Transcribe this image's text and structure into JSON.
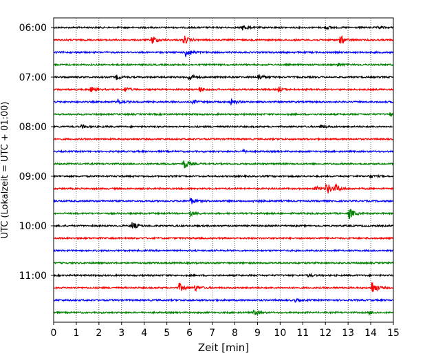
{
  "chart_data": {
    "type": "line",
    "title": "",
    "xlabel": "Zeit  [min]",
    "ylabel": "UTC (Lokalzeit = UTC + 01:00)",
    "xlim": [
      0,
      15
    ],
    "x_ticks": [
      0,
      1,
      2,
      3,
      4,
      5,
      6,
      7,
      8,
      9,
      10,
      11,
      12,
      13,
      14,
      15
    ],
    "x_grid": true,
    "y_ticks": [
      "06:00",
      "07:00",
      "08:00",
      "09:00",
      "10:00",
      "11:00"
    ],
    "trace_colors": [
      "#000000",
      "#ff0000",
      "#0000ff",
      "#008000"
    ],
    "trace_interval_min": 15,
    "traces": [
      {
        "start": "06:00",
        "events": [
          {
            "t": 8.3,
            "a": 0.5
          },
          {
            "t": 12.0,
            "a": 0.3
          },
          {
            "t": 14.3,
            "a": 0.25
          }
        ]
      },
      {
        "start": "06:15",
        "events": [
          {
            "t": 4.3,
            "a": 1.0
          },
          {
            "t": 5.7,
            "a": 1.0
          },
          {
            "t": 12.6,
            "a": 1.0
          }
        ]
      },
      {
        "start": "06:30",
        "events": [
          {
            "t": 5.8,
            "a": 1.3
          }
        ]
      },
      {
        "start": "06:45",
        "events": [
          {
            "t": 12.5,
            "a": 0.4
          }
        ]
      },
      {
        "start": "07:00",
        "events": [
          {
            "t": 2.7,
            "a": 0.5
          },
          {
            "t": 5.9,
            "a": 0.9
          },
          {
            "t": 9.0,
            "a": 0.7
          }
        ]
      },
      {
        "start": "07:15",
        "events": [
          {
            "t": 1.6,
            "a": 0.5
          },
          {
            "t": 3.1,
            "a": 0.5
          },
          {
            "t": 6.4,
            "a": 0.5
          },
          {
            "t": 9.9,
            "a": 0.5
          }
        ]
      },
      {
        "start": "07:30",
        "events": [
          {
            "t": 2.8,
            "a": 0.5
          },
          {
            "t": 6.1,
            "a": 0.4
          },
          {
            "t": 7.8,
            "a": 0.6
          }
        ]
      },
      {
        "start": "07:45",
        "events": [
          {
            "t": 14.8,
            "a": 0.35
          }
        ]
      },
      {
        "start": "08:00",
        "events": [
          {
            "t": 1.2,
            "a": 0.4
          },
          {
            "t": 11.7,
            "a": 0.4
          }
        ]
      },
      {
        "start": "08:15",
        "events": []
      },
      {
        "start": "08:30",
        "events": [
          {
            "t": 8.3,
            "a": 0.3
          }
        ]
      },
      {
        "start": "08:45",
        "events": [
          {
            "t": 5.7,
            "a": 1.2
          }
        ]
      },
      {
        "start": "09:00",
        "events": [
          {
            "t": 13.9,
            "a": 0.35
          }
        ]
      },
      {
        "start": "09:15",
        "events": [
          {
            "t": 11.5,
            "a": 0.5
          },
          {
            "t": 12.0,
            "a": 1.4
          },
          {
            "t": 12.4,
            "a": 0.8
          }
        ]
      },
      {
        "start": "09:30",
        "events": [
          {
            "t": 6.0,
            "a": 0.7
          },
          {
            "t": 8.8,
            "a": 0.4
          }
        ]
      },
      {
        "start": "09:45",
        "events": [
          {
            "t": 6.0,
            "a": 0.5
          },
          {
            "t": 13.0,
            "a": 1.2
          }
        ]
      },
      {
        "start": "10:00",
        "events": [
          {
            "t": 3.4,
            "a": 0.9
          }
        ]
      },
      {
        "start": "10:15",
        "events": []
      },
      {
        "start": "10:30",
        "events": []
      },
      {
        "start": "10:45",
        "events": []
      },
      {
        "start": "11:00",
        "events": [
          {
            "t": 11.2,
            "a": 0.3
          }
        ]
      },
      {
        "start": "11:15",
        "events": [
          {
            "t": 5.5,
            "a": 0.9
          },
          {
            "t": 6.2,
            "a": 0.6
          },
          {
            "t": 14.0,
            "a": 1.5
          }
        ]
      },
      {
        "start": "11:30",
        "events": [
          {
            "t": 10.6,
            "a": 0.3
          }
        ]
      },
      {
        "start": "11:45",
        "events": [
          {
            "t": 8.8,
            "a": 0.5
          },
          {
            "t": 13.9,
            "a": 0.3
          }
        ]
      }
    ]
  }
}
